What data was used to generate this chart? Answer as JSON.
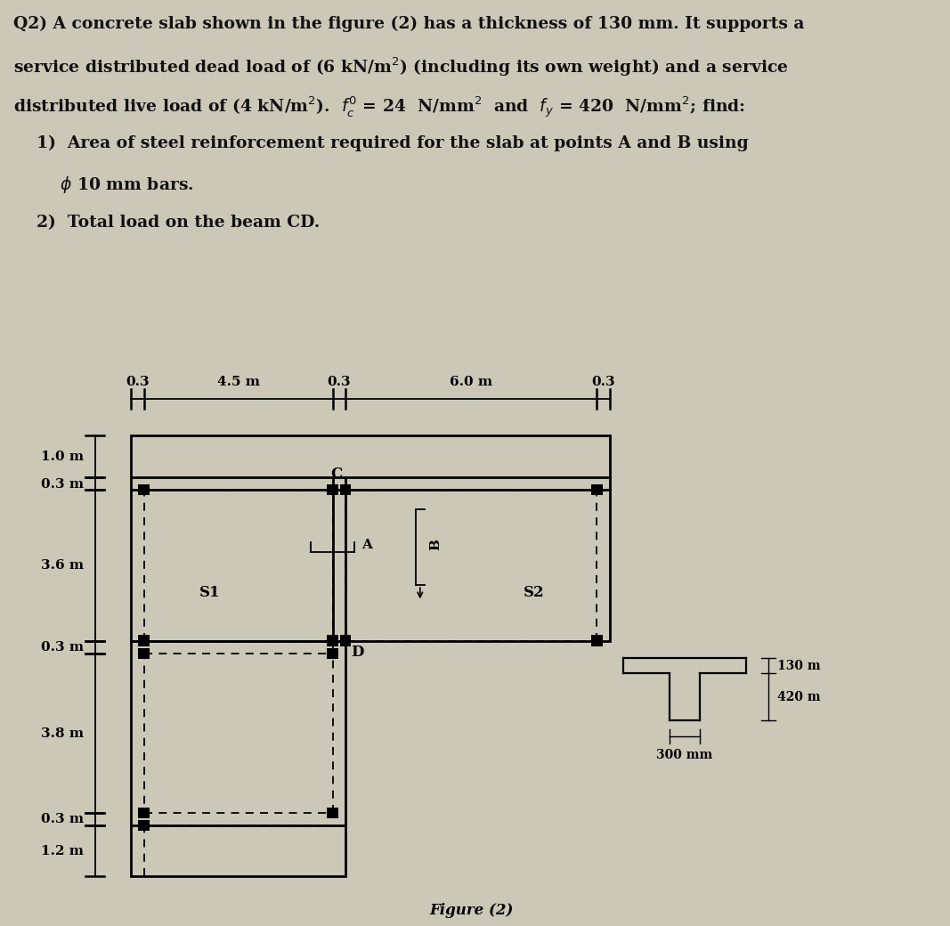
{
  "bg_color": "#ccc8b8",
  "text_color": "#111111",
  "figure_caption": "Figure (2)",
  "dim_top_0": "0.3",
  "dim_top_1": "4.5 m",
  "dim_top_2": "0.3",
  "dim_top_3": "6.0 m",
  "dim_top_4": "0.3",
  "dim_left_1": "1.0 m",
  "dim_left_2": "0.3 m",
  "dim_left_3": "3.6 m",
  "dim_left_4": "0.3 m",
  "dim_left_5": "3.8 m",
  "dim_left_6": "0.3 m",
  "dim_left_7": "1.2 m",
  "label_S1": "S1",
  "label_S2": "S2",
  "label_A": "A",
  "label_B": "B",
  "label_C": "C",
  "label_D": "D",
  "tsec_label_300": "300 mm",
  "tsec_label_130": "130 m",
  "tsec_label_420": "420 m"
}
